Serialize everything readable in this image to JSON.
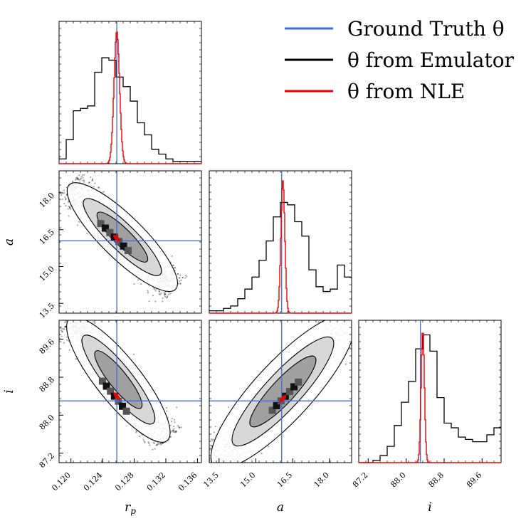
{
  "legend": {
    "placement": "top-right",
    "entries": [
      {
        "label": "Ground Truth θ",
        "color": "#4169e1"
      },
      {
        "label": "θ from Emulator",
        "color": "#000000"
      },
      {
        "label": "θ from NLE",
        "color": "#ee0000"
      }
    ]
  },
  "chart_data": {
    "type": "corner",
    "parameters": [
      {
        "key": "rp",
        "label": "r",
        "label_sub": "p",
        "range": [
          0.1185,
          0.1365
        ],
        "ticks": [
          "0.120",
          "0.124",
          "0.128",
          "0.132",
          "0.136"
        ],
        "tick_values": [
          0.12,
          0.124,
          0.128,
          0.132,
          0.136
        ],
        "truth": 0.1258
      },
      {
        "key": "a",
        "label": "a",
        "label_sub": "",
        "range": [
          13.1,
          18.9
        ],
        "ticks": [
          "13.5",
          "15.0",
          "16.5",
          "18.0"
        ],
        "tick_values": [
          13.5,
          15.0,
          16.5,
          18.0
        ],
        "truth": 16.05
      },
      {
        "key": "i",
        "label": "i",
        "label_sub": "",
        "range": [
          87.0,
          90.0
        ],
        "ticks": [
          "87.2",
          "88.0",
          "88.8",
          "89.6"
        ],
        "tick_values": [
          87.2,
          88.0,
          88.8,
          89.6
        ],
        "truth": 88.3
      }
    ],
    "marginals": {
      "rp": {
        "emulator_counts": [
          2,
          10,
          22,
          23,
          24,
          38,
          44,
          43,
          36,
          32,
          26,
          17,
          12,
          6,
          4,
          2,
          1,
          1,
          1,
          1
        ],
        "nle_center": 0.1258,
        "nle_sigma": 0.00035,
        "nle_peak": 55
      },
      "a": {
        "emulator_counts": [
          1,
          1,
          2,
          3,
          6,
          10,
          15,
          22,
          30,
          40,
          46,
          45,
          38,
          32,
          18,
          11,
          9,
          10,
          20,
          15
        ],
        "nle_center": 16.1,
        "nle_sigma": 0.08,
        "nle_peak": 55
      },
      "i": {
        "emulator_counts": [
          0,
          0,
          1,
          3,
          7,
          16,
          26,
          35,
          49,
          55,
          48,
          28,
          17,
          15,
          11,
          10,
          9,
          9,
          12,
          15
        ],
        "nle_center": 88.35,
        "nle_sigma": 0.035,
        "nle_peak": 57
      }
    },
    "joint": [
      {
        "x": "rp",
        "y": "a",
        "emu_center": [
          0.1255,
          16.2
        ],
        "emu_end1": [
          0.1205,
          18.1
        ],
        "emu_end2": [
          0.1325,
          14.3
        ],
        "nle_center": [
          0.1258,
          16.15
        ]
      },
      {
        "x": "rp",
        "y": "i",
        "emu_center": [
          0.1255,
          88.4
        ],
        "emu_end1": [
          0.1205,
          89.9
        ],
        "emu_end2": [
          0.1315,
          87.6
        ],
        "nle_center": [
          0.1258,
          88.4
        ]
      },
      {
        "x": "a",
        "y": "i",
        "emu_center": [
          16.2,
          88.4
        ],
        "emu_end1": [
          13.6,
          87.1
        ],
        "emu_end2": [
          18.6,
          89.9
        ],
        "nle_center": [
          16.1,
          88.35
        ]
      }
    ]
  }
}
